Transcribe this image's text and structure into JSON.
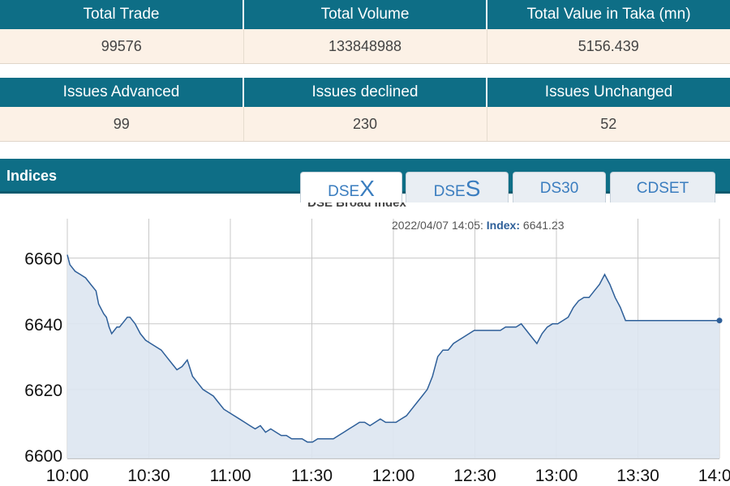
{
  "market_stats": {
    "headers": [
      "Total Trade",
      "Total Volume",
      "Total Value in Taka (mn)"
    ],
    "values": [
      "99576",
      "133848988",
      "5156.439"
    ]
  },
  "issues_stats": {
    "headers": [
      "Issues Advanced",
      "Issues declined",
      "Issues Unchanged"
    ],
    "values": [
      "99",
      "230",
      "52"
    ]
  },
  "indices": {
    "title": "Indices",
    "tabs": [
      {
        "prefix": "DSE",
        "suffix": "X",
        "active": true
      },
      {
        "prefix": "DSE",
        "suffix": "S",
        "active": false
      },
      {
        "prefix": "DS30",
        "suffix": "",
        "active": false
      },
      {
        "prefix": "CDSET",
        "suffix": "",
        "active": false
      }
    ]
  },
  "colors": {
    "header_bg": "#0e6e86",
    "cell_bg": "#fcf1e6",
    "line": "#2e5f99",
    "area": "#dde6f1",
    "tab_text": "#3a7dbf"
  },
  "chart_data": {
    "type": "area",
    "title": "DSE Broad Index",
    "tooltip": {
      "time": "2022/04/07 14:05:",
      "label": "Index:",
      "value": "6641.23"
    },
    "xlabel": "",
    "ylabel": "",
    "x_ticks": [
      "10:00",
      "10:30",
      "11:00",
      "11:30",
      "12:00",
      "12:30",
      "13:00",
      "13:30",
      "14:00"
    ],
    "y_ticks": [
      6600,
      6620,
      6640,
      6660
    ],
    "xlim": [
      0,
      250
    ],
    "ylim": [
      6599,
      6672
    ],
    "grid": true,
    "series": [
      {
        "x": [
          0,
          1,
          3,
          5,
          7,
          9,
          11,
          12,
          14,
          15,
          16,
          17,
          18,
          19,
          20,
          21,
          22,
          23,
          24,
          25,
          26,
          28,
          30,
          32,
          34,
          36,
          38,
          40,
          42,
          44,
          46,
          48,
          50,
          52,
          54,
          56,
          58,
          60,
          62,
          64,
          66,
          68,
          70,
          72,
          74,
          76,
          78,
          80,
          82,
          84,
          86,
          88,
          90,
          92,
          94,
          96,
          98,
          100,
          102,
          104,
          106,
          108,
          110,
          112,
          114,
          116,
          118,
          120,
          122,
          124,
          126,
          128,
          130,
          132,
          134,
          136,
          138,
          140,
          142,
          144,
          146,
          148,
          150,
          152,
          154,
          156,
          158,
          160,
          162,
          164,
          166,
          168,
          170,
          172,
          174,
          176,
          178,
          180,
          182,
          184,
          186,
          188,
          190,
          192,
          194,
          196,
          198,
          200,
          202,
          204,
          206,
          208,
          210,
          212,
          214,
          216,
          218,
          220,
          222,
          224,
          226,
          228,
          230,
          232,
          234,
          236,
          237,
          238,
          239,
          240,
          241,
          242,
          243,
          244,
          245,
          246,
          247,
          248,
          249,
          250
        ],
        "y": [
          6661,
          6658,
          6656,
          6655,
          6654,
          6652,
          6650,
          6646,
          6643,
          6642,
          6639,
          6637,
          6638,
          6639,
          6639,
          6640,
          6641,
          6642,
          6642,
          6641,
          6640,
          6637,
          6635,
          6634,
          6633,
          6632,
          6630,
          6628,
          6626,
          6627,
          6629,
          6624,
          6622,
          6620,
          6619,
          6618,
          6616,
          6614,
          6613,
          6612,
          6611,
          6610,
          6609,
          6608,
          6609,
          6607,
          6608,
          6607,
          6606,
          6606,
          6605,
          6605,
          6605,
          6604,
          6604,
          6605,
          6605,
          6605,
          6605,
          6606,
          6607,
          6608,
          6609,
          6610,
          6610,
          6609,
          6610,
          6611,
          6610,
          6610,
          6610,
          6611,
          6612,
          6614,
          6616,
          6618,
          6620,
          6624,
          6630,
          6632,
          6632,
          6634,
          6635,
          6636,
          6637,
          6638,
          6638,
          6638,
          6638,
          6638,
          6638,
          6639,
          6639,
          6639,
          6640,
          6638,
          6636,
          6634,
          6637,
          6639,
          6640,
          6640,
          6641,
          6642,
          6645,
          6647,
          6648,
          6648,
          6650,
          6652,
          6655,
          6652,
          6648,
          6645,
          6641,
          6641,
          6641,
          6641,
          6641,
          6641,
          6641,
          6641,
          6641,
          6641,
          6641,
          6641,
          6641,
          6641,
          6641,
          6641,
          6641,
          6641,
          6641,
          6641,
          6641,
          6641,
          6641,
          6641,
          6641,
          6641
        ]
      }
    ]
  }
}
